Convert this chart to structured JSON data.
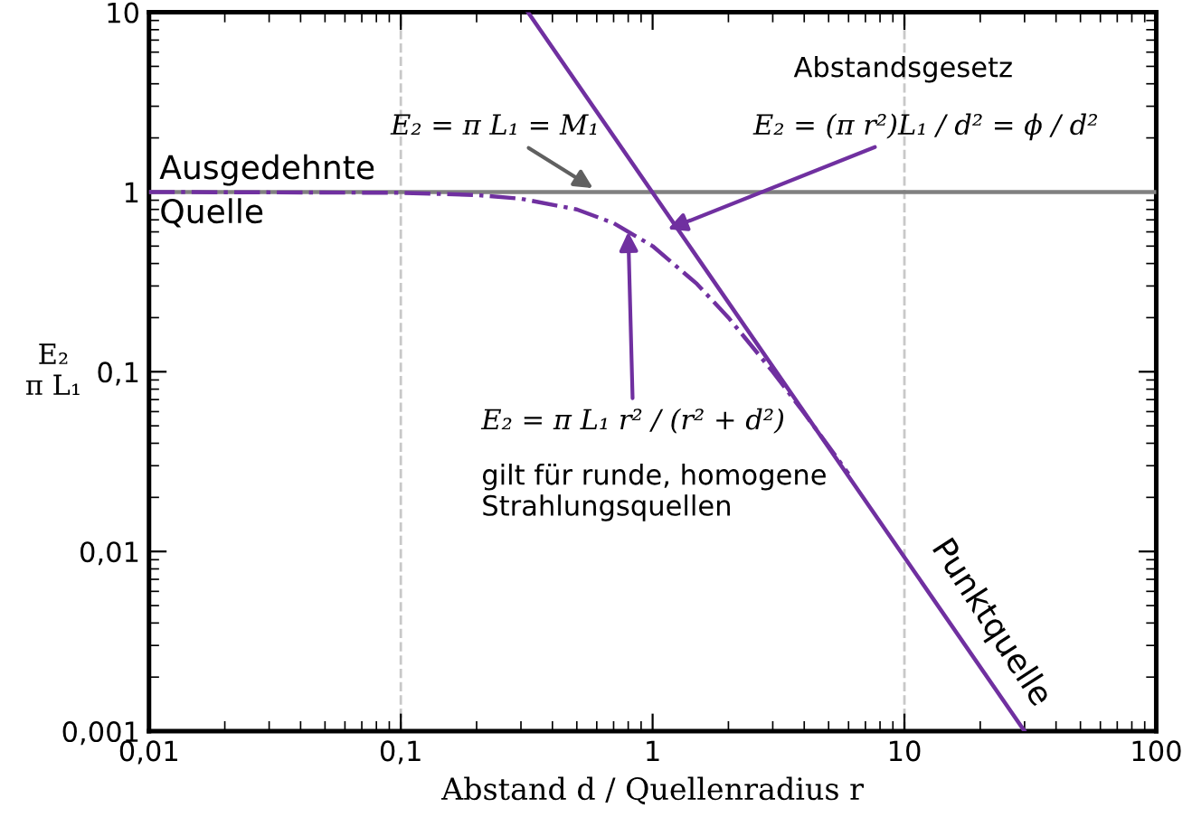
{
  "chart_data": {
    "type": "line",
    "log": "xy",
    "xlabel": "Abstand d / Quellenradius r",
    "ylabel": "E₂\nπ L₁",
    "xlim": [
      0.01,
      100
    ],
    "ylim": [
      0.001,
      10
    ],
    "xticks": [
      {
        "value": 0.01,
        "label": "0,01"
      },
      {
        "value": 0.1,
        "label": "0,1"
      },
      1,
      10,
      100
    ],
    "yticks": [
      {
        "value": 0.001,
        "label": "0,001"
      },
      {
        "value": 0.01,
        "label": "0,01"
      },
      {
        "value": 0.1,
        "label": "0,1"
      },
      1,
      10
    ],
    "grid": false,
    "legend": false,
    "series": [
      {
        "name": "Ausgedehnte\nQuelle",
        "color": "#808080",
        "line_style": "solid",
        "x": [
          0.01,
          100
        ],
        "values": [
          1,
          1
        ]
      },
      {
        "name": "Punktquelle",
        "color": "#7030a0",
        "line_style": "solid",
        "x": [
          0.32,
          30
        ],
        "values": [
          10,
          0.001
        ]
      },
      {
        "color": "#7030a0",
        "line_style": "dashdot",
        "x": [
          0.01,
          0.1,
          0.2,
          0.3,
          0.5,
          0.7,
          1,
          1.5,
          2,
          3,
          4,
          5,
          6
        ],
        "values": [
          1,
          0.99,
          0.962,
          0.917,
          0.8,
          0.671,
          0.5,
          0.308,
          0.2,
          0.1,
          0.0588,
          0.0385,
          0.027
        ]
      }
    ],
    "ref_lines": [
      {
        "axis": "x",
        "value": 0.1,
        "color": "#c8c8c8",
        "line_style": "dashed"
      },
      {
        "axis": "x",
        "value": 10,
        "color": "#c8c8c8",
        "line_style": "dashed"
      }
    ],
    "annotations": [
      {
        "text": "E₂ = π L₁ = M₁",
        "x": 0.58,
        "y": 1.05
      },
      "Abstandsgesetz",
      {
        "text": "E₂ = (π r²)L₁ / d² = ϕ / d²",
        "x": 1.15,
        "y": 0.62
      },
      {
        "text": "E₂ = π L₁ r² / (r² + d²)",
        "x": 0.8,
        "y": 0.6
      },
      "gilt für runde, homogene\nStrahlungsquellen"
    ]
  }
}
